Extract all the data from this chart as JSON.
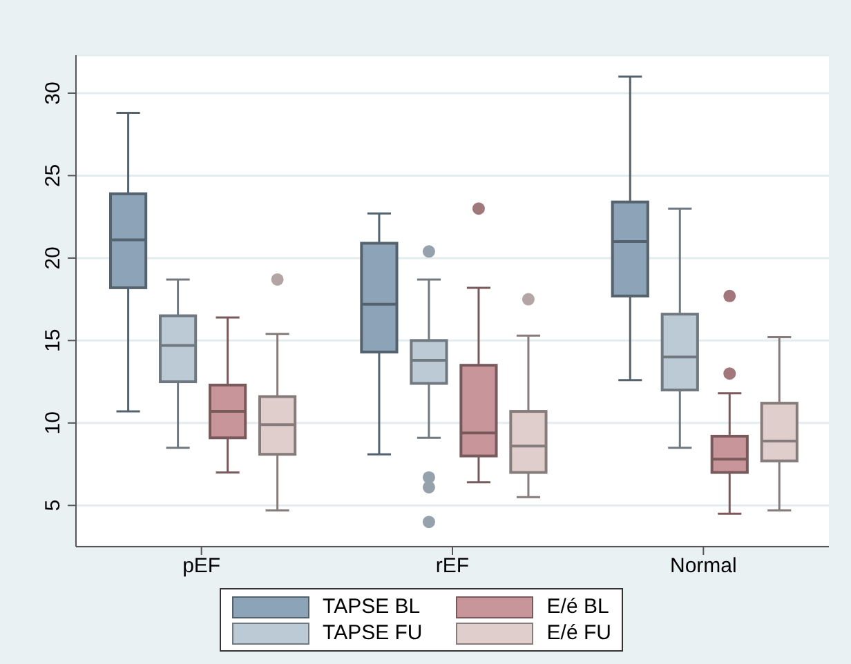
{
  "chart_data": {
    "type": "box",
    "categories": [
      "pEF",
      "rEF",
      "Normal"
    ],
    "series": [
      {
        "name": "TAPSE BL",
        "color": "#8ca3b8",
        "boxes": [
          {
            "low": 10.7,
            "q1": 18.2,
            "median": 21.1,
            "q3": 23.9,
            "high": 28.8
          },
          {
            "low": 8.1,
            "q1": 14.3,
            "median": 17.2,
            "q3": 20.9,
            "high": 22.7
          },
          {
            "low": 12.6,
            "q1": 17.7,
            "median": 21.0,
            "q3": 23.4,
            "high": 31.0
          }
        ]
      },
      {
        "name": "TAPSE FU",
        "color": "#bccad6",
        "boxes": [
          {
            "low": 8.5,
            "q1": 12.5,
            "median": 14.7,
            "q3": 16.5,
            "high": 18.7
          },
          {
            "low": 9.1,
            "q1": 12.4,
            "median": 13.8,
            "q3": 15.0,
            "high": 18.7,
            "outliers": [
              20.4,
              6.7,
              6.1,
              4.0
            ]
          },
          {
            "low": 8.5,
            "q1": 12.0,
            "median": 14.0,
            "q3": 16.6,
            "high": 23.0
          }
        ]
      },
      {
        "name": "E/é BL",
        "color": "#c8959a",
        "boxes": [
          {
            "low": 7.0,
            "q1": 9.1,
            "median": 10.7,
            "q3": 12.3,
            "high": 16.4
          },
          {
            "low": 6.4,
            "q1": 8.0,
            "median": 9.4,
            "q3": 13.5,
            "high": 18.2,
            "outliers": [
              23.0
            ]
          },
          {
            "low": 4.5,
            "q1": 7.0,
            "median": 7.8,
            "q3": 9.2,
            "high": 11.8,
            "outliers": [
              17.7,
              13.0
            ]
          }
        ]
      },
      {
        "name": "E/é FU",
        "color": "#e0cecd",
        "boxes": [
          {
            "low": 4.7,
            "q1": 8.1,
            "median": 9.9,
            "q3": 11.6,
            "high": 15.4,
            "outliers": [
              18.7
            ]
          },
          {
            "low": 5.5,
            "q1": 7.0,
            "median": 8.6,
            "q3": 10.7,
            "high": 15.3,
            "outliers": [
              17.5
            ]
          },
          {
            "low": 4.7,
            "q1": 7.7,
            "median": 8.9,
            "q3": 11.2,
            "high": 15.2
          }
        ]
      }
    ],
    "ylim": [
      2.5,
      32.3
    ],
    "yticks": [
      5,
      10,
      15,
      20,
      25,
      30
    ],
    "grid": "y",
    "legend": "bottom"
  }
}
